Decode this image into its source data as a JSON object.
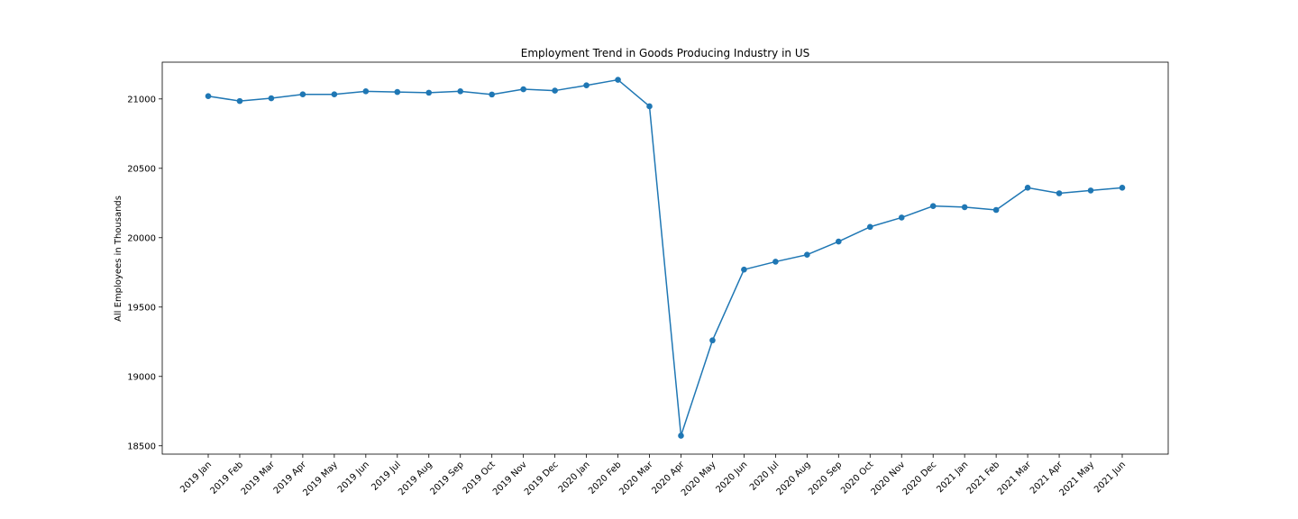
{
  "chart_data": {
    "type": "line",
    "title": "Employment Trend in Goods Producing Industry in US",
    "xlabel": "",
    "ylabel": "All Employees in Thousands",
    "categories": [
      "2019 Jan",
      "2019 Feb",
      "2019 Mar",
      "2019 Apr",
      "2019 May",
      "2019 Jun",
      "2019 Jul",
      "2019 Aug",
      "2019 Sep",
      "2019 Oct",
      "2019 Nov",
      "2019 Dec",
      "2020 Jan",
      "2020 Feb",
      "2020 Mar",
      "2020 Apr",
      "2020 May",
      "2020 Jun",
      "2020 Jul",
      "2020 Aug",
      "2020 Sep",
      "2020 Oct",
      "2020 Nov",
      "2020 Dec",
      "2021 Jan",
      "2021 Feb",
      "2021 Mar",
      "2021 Apr",
      "2021 May",
      "2021 Jun"
    ],
    "series": [
      {
        "values": [
          21020,
          20985,
          21005,
          21033,
          21033,
          21055,
          21050,
          21045,
          21055,
          21032,
          21070,
          21060,
          21098,
          21138,
          20947,
          18573,
          19260,
          19770,
          19827,
          19877,
          19972,
          20078,
          20145,
          20228,
          20220,
          20200,
          20360,
          20320,
          20340,
          20360
        ],
        "color": "#1f77b4",
        "marker": "circle"
      }
    ],
    "yticks": [
      18500,
      19000,
      19500,
      20000,
      20500,
      21000
    ],
    "ylim": [
      18440,
      21265
    ],
    "grid": false,
    "legend": "none"
  }
}
